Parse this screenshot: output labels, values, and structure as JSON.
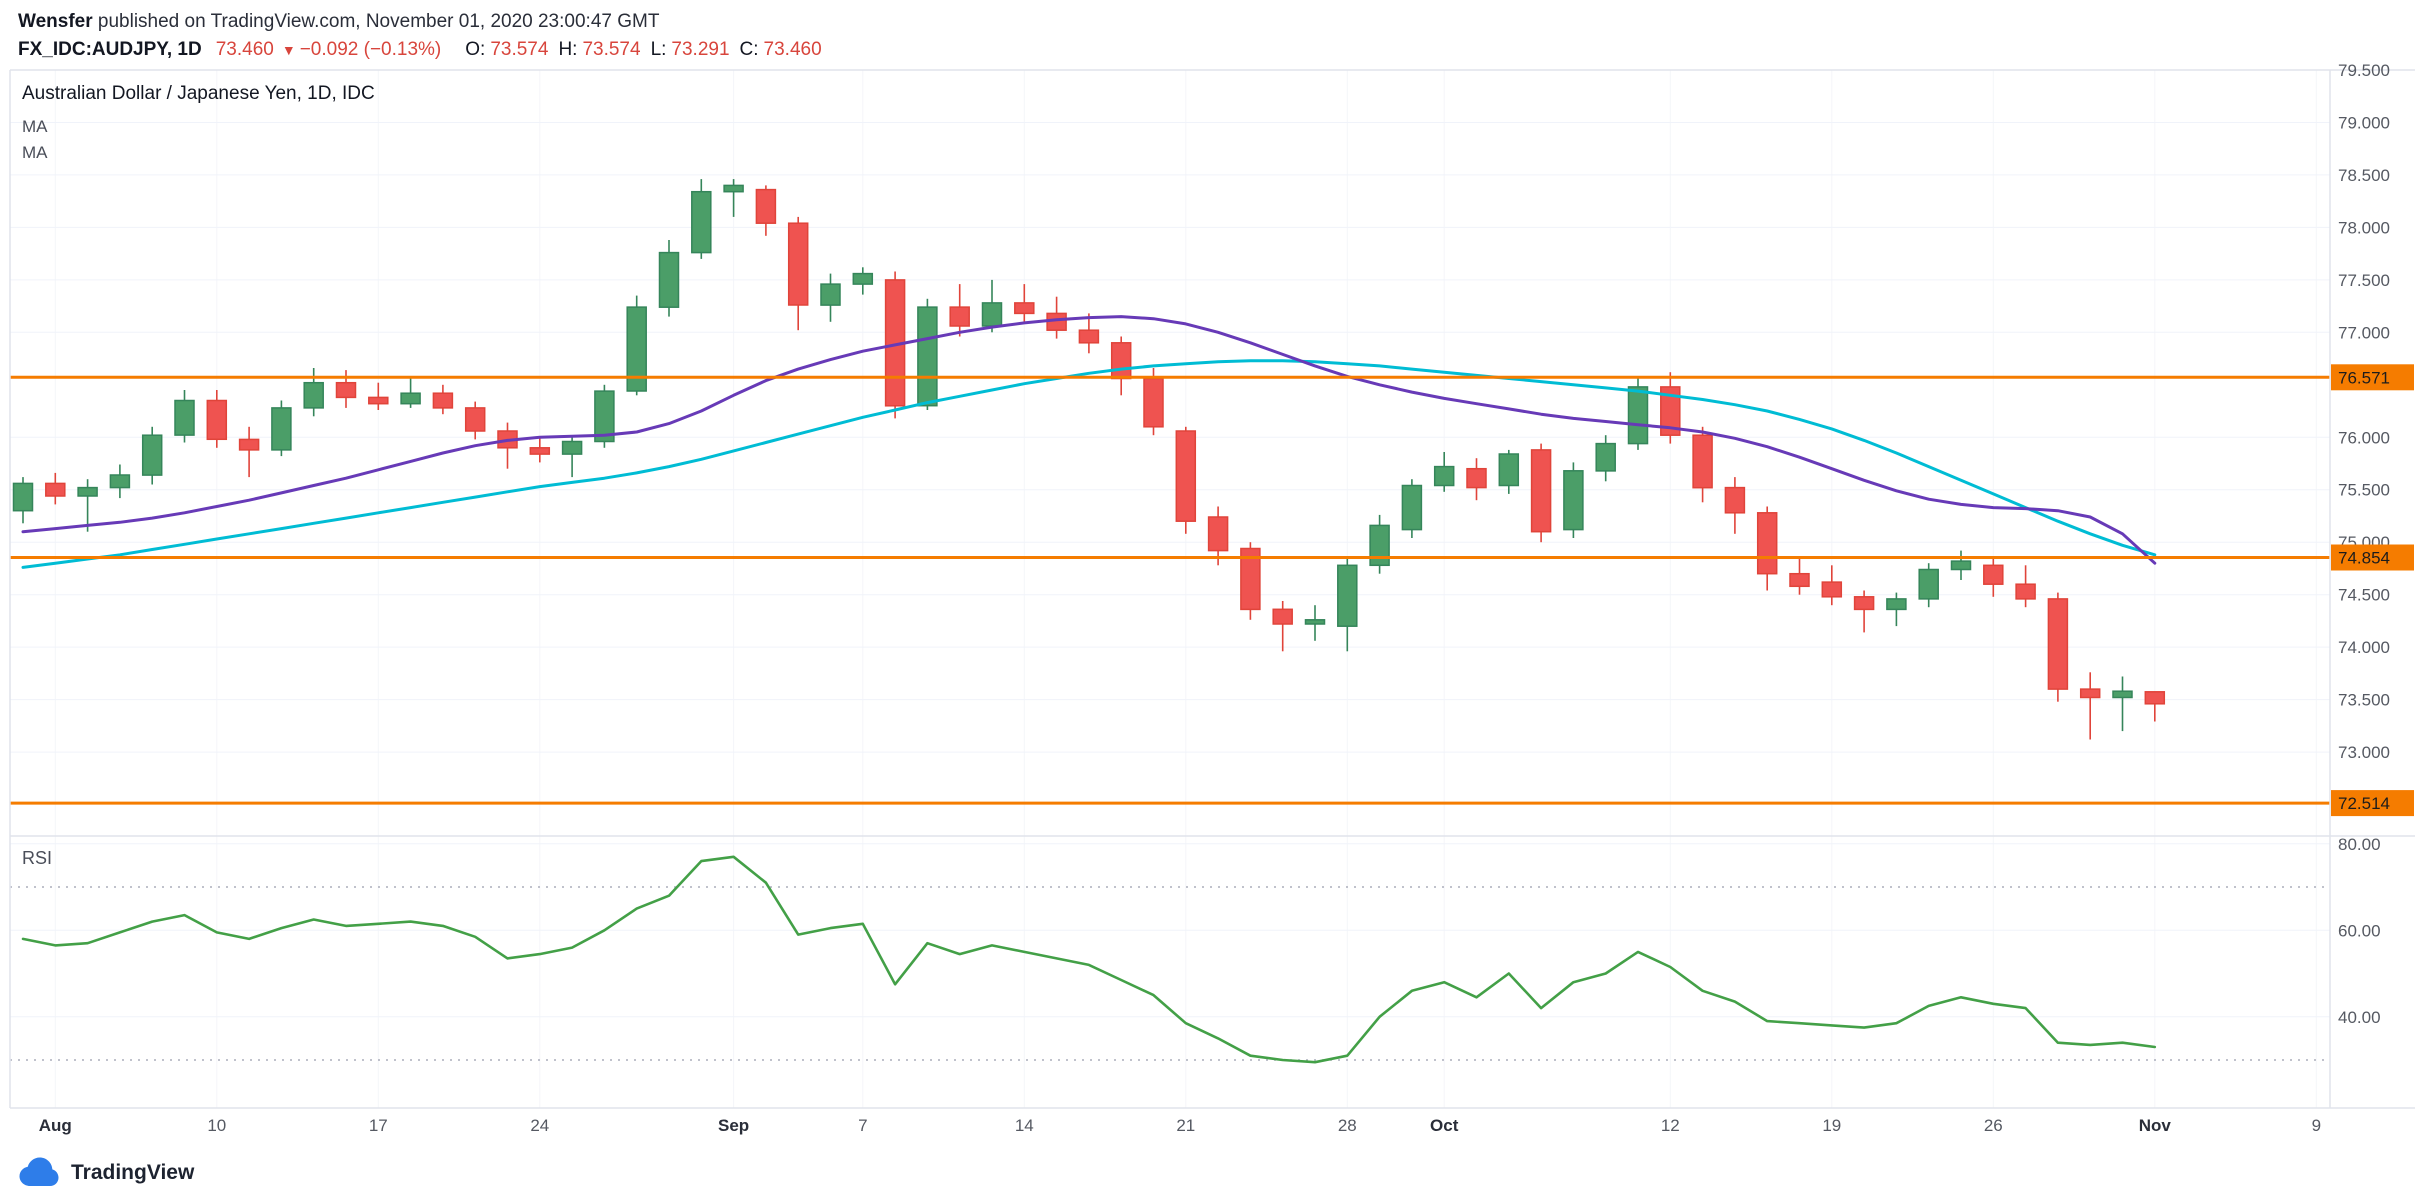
{
  "header": {
    "author": "Wensfer",
    "published_suffix": " published on TradingView.com, November 01, 2020 23:00:47 GMT",
    "symbol": "FX_IDC:AUDJPY, 1D",
    "last_price": "73.460",
    "direction_icon": "▼",
    "change": "−0.092 (−0.13%)",
    "ohlc": [
      {
        "label": "O:",
        "value": "73.574"
      },
      {
        "label": "H:",
        "value": "73.574"
      },
      {
        "label": "L:",
        "value": "73.291"
      },
      {
        "label": "C:",
        "value": "73.460"
      }
    ]
  },
  "legend": {
    "title": "Australian Dollar / Japanese Yen, 1D, IDC",
    "ma1": "MA",
    "ma2": "MA"
  },
  "rsi_label": "RSI",
  "footer": {
    "brand": "TradingView"
  },
  "colors": {
    "up_fill": "#4b9e68",
    "up_border": "#35855a",
    "down_fill": "#ef5350",
    "down_border": "#e0443a",
    "ma_fast": "#673ab7",
    "ma_slow": "#00bcd4",
    "rsi_line": "#43a047",
    "level_orange": "#f57c00",
    "axis_text": "#555962",
    "grid": "#f0f3fa",
    "border": "#e0e3eb"
  },
  "chart_data": {
    "type": "candlestick",
    "title": "Australian Dollar / Japanese Yen, 1D, IDC",
    "price_axis": {
      "min": 72.2,
      "max": 79.5,
      "ticks": [
        {
          "v": 79.5,
          "t": "79.500"
        },
        {
          "v": 79.0,
          "t": "79.000"
        },
        {
          "v": 78.5,
          "t": "78.500"
        },
        {
          "v": 78.0,
          "t": "78.000"
        },
        {
          "v": 77.5,
          "t": "77.500"
        },
        {
          "v": 77.0,
          "t": "77.000"
        },
        {
          "v": 76.0,
          "t": "76.000"
        },
        {
          "v": 75.5,
          "t": "75.500"
        },
        {
          "v": 75.0,
          "t": "75.000"
        },
        {
          "v": 74.5,
          "t": "74.500"
        },
        {
          "v": 74.0,
          "t": "74.000"
        },
        {
          "v": 73.5,
          "t": "73.500"
        },
        {
          "v": 73.0,
          "t": "73.000"
        }
      ]
    },
    "levels": [
      {
        "value": 76.571,
        "label": "76.571"
      },
      {
        "value": 74.854,
        "label": "74.854"
      },
      {
        "value": 72.514,
        "label": "72.514"
      }
    ],
    "x_labels": [
      {
        "i": 1,
        "t": "Aug",
        "month": true
      },
      {
        "i": 6,
        "t": "10"
      },
      {
        "i": 11,
        "t": "17"
      },
      {
        "i": 16,
        "t": "24"
      },
      {
        "i": 22,
        "t": "Sep",
        "month": true
      },
      {
        "i": 26,
        "t": "7"
      },
      {
        "i": 31,
        "t": "14"
      },
      {
        "i": 36,
        "t": "21"
      },
      {
        "i": 41,
        "t": "28"
      },
      {
        "i": 44,
        "t": "Oct",
        "month": true
      },
      {
        "i": 51,
        "t": "12"
      },
      {
        "i": 56,
        "t": "19"
      },
      {
        "i": 61,
        "t": "26"
      },
      {
        "i": 66,
        "t": "Nov",
        "month": true
      },
      {
        "i": 71,
        "t": "9"
      }
    ],
    "candles": [
      [
        "Jul 31",
        75.3,
        75.62,
        75.18,
        75.56
      ],
      [
        "Aug 3",
        75.56,
        75.66,
        75.36,
        75.44
      ],
      [
        "Aug 4",
        75.44,
        75.6,
        75.1,
        75.52
      ],
      [
        "Aug 5",
        75.52,
        75.74,
        75.42,
        75.64
      ],
      [
        "Aug 6",
        75.64,
        76.1,
        75.55,
        76.02
      ],
      [
        "Aug 7",
        76.02,
        76.45,
        75.95,
        76.35
      ],
      [
        "Aug 10",
        76.35,
        76.45,
        75.9,
        75.98
      ],
      [
        "Aug 11",
        75.98,
        76.1,
        75.62,
        75.88
      ],
      [
        "Aug 12",
        75.88,
        76.35,
        75.82,
        76.28
      ],
      [
        "Aug 13",
        76.28,
        76.66,
        76.2,
        76.52
      ],
      [
        "Aug 14",
        76.52,
        76.64,
        76.28,
        76.38
      ],
      [
        "Aug 17",
        76.38,
        76.52,
        76.26,
        76.32
      ],
      [
        "Aug 18",
        76.32,
        76.56,
        76.28,
        76.42
      ],
      [
        "Aug 19",
        76.42,
        76.5,
        76.22,
        76.28
      ],
      [
        "Aug 20",
        76.28,
        76.34,
        75.98,
        76.06
      ],
      [
        "Aug 21",
        76.06,
        76.14,
        75.7,
        75.9
      ],
      [
        "Aug 24",
        75.9,
        76.0,
        75.76,
        75.84
      ],
      [
        "Aug 25",
        75.84,
        76.0,
        75.62,
        75.96
      ],
      [
        "Aug 26",
        75.96,
        76.5,
        75.9,
        76.44
      ],
      [
        "Aug 27",
        76.44,
        77.35,
        76.4,
        77.24
      ],
      [
        "Aug 28",
        77.24,
        77.88,
        77.15,
        77.76
      ],
      [
        "Aug 31",
        77.76,
        78.46,
        77.7,
        78.34
      ],
      [
        "Sep 1",
        78.34,
        78.46,
        78.1,
        78.4
      ],
      [
        "Sep 2",
        78.36,
        78.4,
        77.92,
        78.04
      ],
      [
        "Sep 3",
        78.04,
        78.1,
        77.02,
        77.26
      ],
      [
        "Sep 4",
        77.26,
        77.56,
        77.1,
        77.46
      ],
      [
        "Sep 7",
        77.46,
        77.62,
        77.36,
        77.56
      ],
      [
        "Sep 8",
        77.5,
        77.58,
        76.18,
        76.3
      ],
      [
        "Sep 9",
        76.3,
        77.32,
        76.26,
        77.24
      ],
      [
        "Sep 10",
        77.24,
        77.46,
        76.96,
        77.06
      ],
      [
        "Sep 11",
        77.06,
        77.5,
        77.0,
        77.28
      ],
      [
        "Sep 14",
        77.28,
        77.46,
        77.1,
        77.18
      ],
      [
        "Sep 15",
        77.18,
        77.34,
        76.94,
        77.02
      ],
      [
        "Sep 16",
        77.02,
        77.18,
        76.8,
        76.9
      ],
      [
        "Sep 17",
        76.9,
        76.96,
        76.4,
        76.56
      ],
      [
        "Sep 18",
        76.56,
        76.66,
        76.02,
        76.1
      ],
      [
        "Sep 21",
        76.06,
        76.1,
        75.08,
        75.2
      ],
      [
        "Sep 22",
        75.24,
        75.34,
        74.78,
        74.92
      ],
      [
        "Sep 23",
        74.94,
        75.0,
        74.26,
        74.36
      ],
      [
        "Sep 24",
        74.36,
        74.44,
        73.96,
        74.22
      ],
      [
        "Sep 25",
        74.22,
        74.4,
        74.06,
        74.26
      ],
      [
        "Sep 28",
        74.2,
        74.84,
        73.96,
        74.78
      ],
      [
        "Sep 29",
        74.78,
        75.26,
        74.7,
        75.16
      ],
      [
        "Sep 30",
        75.12,
        75.6,
        75.04,
        75.54
      ],
      [
        "Oct 1",
        75.54,
        75.86,
        75.48,
        75.72
      ],
      [
        "Oct 2",
        75.7,
        75.8,
        75.4,
        75.52
      ],
      [
        "Oct 5",
        75.54,
        75.88,
        75.46,
        75.84
      ],
      [
        "Oct 6",
        75.88,
        75.94,
        75.0,
        75.1
      ],
      [
        "Oct 7",
        75.12,
        75.76,
        75.04,
        75.68
      ],
      [
        "Oct 8",
        75.68,
        76.02,
        75.58,
        75.94
      ],
      [
        "Oct 9",
        75.94,
        76.56,
        75.88,
        76.48
      ],
      [
        "Oct 12",
        76.48,
        76.62,
        75.94,
        76.02
      ],
      [
        "Oct 13",
        76.02,
        76.1,
        75.38,
        75.52
      ],
      [
        "Oct 14",
        75.52,
        75.62,
        75.08,
        75.28
      ],
      [
        "Oct 15",
        75.28,
        75.34,
        74.54,
        74.7
      ],
      [
        "Oct 16",
        74.7,
        74.84,
        74.5,
        74.58
      ],
      [
        "Oct 19",
        74.62,
        74.78,
        74.4,
        74.48
      ],
      [
        "Oct 20",
        74.48,
        74.54,
        74.14,
        74.36
      ],
      [
        "Oct 21",
        74.36,
        74.52,
        74.2,
        74.46
      ],
      [
        "Oct 22",
        74.46,
        74.8,
        74.38,
        74.74
      ],
      [
        "Oct 23",
        74.74,
        74.92,
        74.64,
        74.82
      ],
      [
        "Oct 26",
        74.78,
        74.86,
        74.48,
        74.6
      ],
      [
        "Oct 27",
        74.6,
        74.78,
        74.38,
        74.46
      ],
      [
        "Oct 28",
        74.46,
        74.52,
        73.48,
        73.6
      ],
      [
        "Oct 29",
        73.6,
        73.76,
        73.12,
        73.52
      ],
      [
        "Oct 30",
        73.52,
        73.72,
        73.2,
        73.58
      ],
      [
        "Nov 2",
        73.574,
        73.574,
        73.291,
        73.46
      ]
    ],
    "ma_fast": {
      "name": "MA",
      "values": [
        75.1,
        75.13,
        75.16,
        75.19,
        75.23,
        75.28,
        75.34,
        75.4,
        75.47,
        75.54,
        75.61,
        75.69,
        75.77,
        75.85,
        75.92,
        75.97,
        76.0,
        76.01,
        76.02,
        76.05,
        76.13,
        76.25,
        76.4,
        76.54,
        76.65,
        76.74,
        76.82,
        76.88,
        76.94,
        77.0,
        77.05,
        77.09,
        77.12,
        77.14,
        77.15,
        77.13,
        77.08,
        77.0,
        76.9,
        76.79,
        76.68,
        76.58,
        76.5,
        76.43,
        76.37,
        76.32,
        76.27,
        76.22,
        76.18,
        76.15,
        76.12,
        76.09,
        76.05,
        75.99,
        75.91,
        75.81,
        75.7,
        75.59,
        75.49,
        75.41,
        75.36,
        75.33,
        75.32,
        75.3,
        75.24,
        75.08,
        74.8
      ]
    },
    "ma_slow": {
      "name": "MA",
      "values": [
        74.76,
        74.8,
        74.84,
        74.88,
        74.93,
        74.98,
        75.03,
        75.08,
        75.13,
        75.18,
        75.23,
        75.28,
        75.33,
        75.38,
        75.43,
        75.48,
        75.53,
        75.57,
        75.61,
        75.66,
        75.72,
        75.79,
        75.87,
        75.95,
        76.03,
        76.11,
        76.19,
        76.26,
        76.33,
        76.39,
        76.45,
        76.51,
        76.56,
        76.61,
        76.65,
        76.68,
        76.7,
        76.72,
        76.73,
        76.73,
        76.72,
        76.7,
        76.68,
        76.65,
        76.62,
        76.59,
        76.56,
        76.53,
        76.5,
        76.47,
        76.44,
        76.4,
        76.36,
        76.31,
        76.25,
        76.17,
        76.08,
        75.97,
        75.85,
        75.72,
        75.59,
        75.46,
        75.33,
        75.2,
        75.08,
        74.97,
        74.88
      ]
    },
    "rsi": {
      "name": "RSI",
      "axis": {
        "min": 18.9,
        "max": 81.8,
        "ticks": [
          80,
          60,
          40
        ],
        "bands": [
          70,
          30
        ]
      },
      "values": [
        58,
        56.5,
        57,
        59.5,
        62,
        63.5,
        59.5,
        58,
        60.5,
        62.5,
        61,
        61.5,
        62,
        61,
        58.5,
        53.5,
        54.5,
        56,
        60,
        65,
        68,
        76,
        77,
        71,
        59,
        60.5,
        61.5,
        47.5,
        57,
        54.5,
        56.5,
        55,
        53.5,
        52,
        48.5,
        45,
        38.5,
        35,
        31,
        30,
        29.5,
        31,
        40,
        46,
        48,
        44.5,
        50,
        42,
        48,
        50,
        55,
        51.5,
        46,
        43.5,
        39,
        38.5,
        38,
        37.5,
        38.5,
        42.5,
        44.5,
        43,
        42,
        34,
        33.5,
        34,
        33
      ]
    }
  }
}
